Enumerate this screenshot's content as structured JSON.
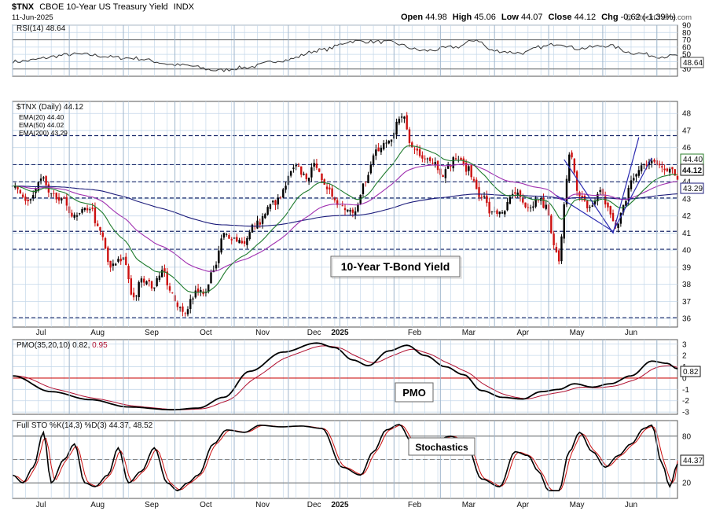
{
  "header": {
    "symbol": "$TNX",
    "name": "CBOE 10-Year US Treasury Yield",
    "exchange": "INDX",
    "date": "11-Jun-2025",
    "open_label": "Open",
    "open": "44.98",
    "high_label": "High",
    "high": "45.06",
    "low_label": "Low",
    "low": "44.07",
    "close_label": "Close",
    "close": "44.12",
    "chg_label": "Chg",
    "chg": "-0.62 (-1.39%)",
    "watermark": "@ StockCharts.com"
  },
  "colors": {
    "ema20": "#1e7b2c",
    "ema50": "#a030b0",
    "ema200": "#1a1a7a",
    "up_bar": "#000000",
    "down_bar": "#cc1010",
    "pmo_signal": "#b01030",
    "zero_line": "#cc1010",
    "trendline": "#2a2ab0",
    "grid": "#c5d8ea",
    "dashed": "#1b2a6b"
  },
  "panels": {
    "rsi": {
      "label": "RSI(14) 48.64",
      "value_badge": "48.64"
    },
    "price": {
      "label": "$TNX (Daily) 44.12",
      "legend": [
        {
          "label": "EMA(20) 44.40",
          "color_key": "ema20"
        },
        {
          "label": "EMA(50) 44.02",
          "color_key": "ema50"
        },
        {
          "label": "EMA(200) 43.29",
          "color_key": "ema200"
        }
      ],
      "badges": [
        "44.40",
        "44.12",
        "43.29"
      ]
    },
    "pmo": {
      "label_main": "PMO(35,20,10) 0.82, ",
      "label_signal": "0.95",
      "value_badge": "0.82"
    },
    "sto": {
      "label": "Full STO %K(14,3) %D(3) 44.37, 48.52",
      "value_badge": "44.37"
    }
  },
  "annotations": {
    "price": "10-Year T-Bond Yield",
    "pmo": "PMO",
    "sto": "Stochastics"
  },
  "x_axis_labels": [
    "Jul",
    "Aug",
    "Sep",
    "Oct",
    "Nov",
    "Dec",
    "2025",
    "Feb",
    "Mar",
    "Apr",
    "May",
    "Jun"
  ],
  "chart_data": [
    {
      "type": "line",
      "name": "RSI(14)",
      "ylim": [
        20,
        90
      ],
      "yticks": [
        90,
        80,
        70,
        60,
        50,
        40,
        30
      ],
      "reference_lines": [
        70,
        30
      ],
      "anchors": [
        [
          0,
          40
        ],
        [
          25,
          50
        ],
        [
          45,
          45
        ],
        [
          66,
          35
        ],
        [
          80,
          28
        ],
        [
          90,
          32
        ],
        [
          105,
          42
        ],
        [
          120,
          56
        ],
        [
          132,
          68
        ],
        [
          145,
          67
        ],
        [
          160,
          55
        ],
        [
          172,
          60
        ],
        [
          180,
          70
        ],
        [
          186,
          55
        ],
        [
          198,
          52
        ],
        [
          205,
          60
        ],
        [
          212,
          65
        ],
        [
          219,
          58
        ],
        [
          231,
          62
        ],
        [
          241,
          52
        ],
        [
          252,
          47
        ],
        [
          258,
          48
        ]
      ],
      "last": 48.64
    },
    {
      "type": "candlestick",
      "name": "$TNX (Daily)",
      "ylim": [
        35.5,
        48.7
      ],
      "yticks": [
        48,
        47,
        46,
        45,
        44,
        43,
        42,
        41,
        40,
        39,
        38,
        37,
        36
      ],
      "horizontal_levels": [
        46.7,
        45,
        44,
        43.05,
        41.1,
        40.05,
        36.05
      ],
      "anchors": [
        [
          0,
          43.6
        ],
        [
          6,
          42.9
        ],
        [
          12,
          44.2
        ],
        [
          14,
          43.2
        ],
        [
          20,
          42.8
        ],
        [
          24,
          41.9
        ],
        [
          30,
          42.5
        ],
        [
          34,
          41.0
        ],
        [
          38,
          39.0
        ],
        [
          43,
          39.5
        ],
        [
          47,
          37.2
        ],
        [
          50,
          38.2
        ],
        [
          55,
          37.9
        ],
        [
          58,
          39.0
        ],
        [
          62,
          37.3
        ],
        [
          66,
          36.3
        ],
        [
          71,
          37.5
        ],
        [
          75,
          37.6
        ],
        [
          78,
          38.8
        ],
        [
          82,
          40.9
        ],
        [
          90,
          40.5
        ],
        [
          94,
          41.5
        ],
        [
          102,
          42.8
        ],
        [
          110,
          44.8
        ],
        [
          114,
          44.3
        ],
        [
          118,
          45.0
        ],
        [
          122,
          43.4
        ],
        [
          129,
          42.5
        ],
        [
          132,
          42.3
        ],
        [
          137,
          44.0
        ],
        [
          141,
          45.8
        ],
        [
          146,
          46.2
        ],
        [
          151,
          48.0
        ],
        [
          155,
          46.0
        ],
        [
          160,
          45.5
        ],
        [
          163,
          45.2
        ],
        [
          167,
          44.5
        ],
        [
          172,
          45.4
        ],
        [
          176,
          44.8
        ],
        [
          182,
          43.2
        ],
        [
          186,
          42.1
        ],
        [
          190,
          42.3
        ],
        [
          195,
          43.3
        ],
        [
          200,
          42.3
        ],
        [
          204,
          43.0
        ],
        [
          207,
          42.5
        ],
        [
          210,
          40.3
        ],
        [
          212,
          39.2
        ],
        [
          214,
          42.8
        ],
        [
          216,
          45.8
        ],
        [
          220,
          43.0
        ],
        [
          224,
          42.5
        ],
        [
          228,
          43.4
        ],
        [
          231,
          42.5
        ],
        [
          234,
          41.3
        ],
        [
          237,
          42.6
        ],
        [
          241,
          44.3
        ],
        [
          245,
          45.0
        ],
        [
          248,
          45.4
        ],
        [
          251,
          44.8
        ],
        [
          254,
          44.7
        ],
        [
          256,
          44.9
        ],
        [
          258,
          44.12
        ]
      ],
      "last_close": 44.12,
      "ema20_last": 44.4,
      "ema50_last": 44.02,
      "ema200_last": 43.29
    },
    {
      "type": "line",
      "name": "PMO(35,20,10)",
      "ylim": [
        -3.2,
        3.4
      ],
      "yticks": [
        3,
        2,
        1,
        0,
        -1,
        -2,
        -3
      ],
      "anchors": [
        [
          0,
          0.2
        ],
        [
          15,
          -1.2
        ],
        [
          30,
          -1.9
        ],
        [
          45,
          -2.55
        ],
        [
          62,
          -2.8
        ],
        [
          72,
          -2.65
        ],
        [
          82,
          -1.7
        ],
        [
          92,
          0.6
        ],
        [
          105,
          2.3
        ],
        [
          118,
          3.1
        ],
        [
          125,
          2.7
        ],
        [
          132,
          1.6
        ],
        [
          138,
          1.1
        ],
        [
          146,
          2.4
        ],
        [
          153,
          2.9
        ],
        [
          160,
          2.0
        ],
        [
          168,
          1.0
        ],
        [
          175,
          0.3
        ],
        [
          182,
          -1.1
        ],
        [
          190,
          -1.7
        ],
        [
          198,
          -1.85
        ],
        [
          205,
          -1.2
        ],
        [
          212,
          -1.0
        ],
        [
          218,
          -0.5
        ],
        [
          225,
          -0.8
        ],
        [
          232,
          -0.5
        ],
        [
          240,
          0.2
        ],
        [
          248,
          1.5
        ],
        [
          254,
          1.3
        ],
        [
          258,
          0.82
        ]
      ],
      "signal_last": 0.95,
      "last": 0.82
    },
    {
      "type": "line",
      "name": "Full STO %K(14,3) %D(3)",
      "ylim": [
        0,
        100
      ],
      "yticks": [
        80,
        50,
        20
      ],
      "reference_lines": [
        80,
        20
      ],
      "anchors": [
        [
          0,
          30
        ],
        [
          4,
          20
        ],
        [
          8,
          40
        ],
        [
          12,
          85
        ],
        [
          15,
          20
        ],
        [
          20,
          50
        ],
        [
          24,
          70
        ],
        [
          28,
          20
        ],
        [
          32,
          15
        ],
        [
          37,
          30
        ],
        [
          41,
          65
        ],
        [
          45,
          20
        ],
        [
          50,
          35
        ],
        [
          55,
          65
        ],
        [
          60,
          20
        ],
        [
          64,
          10
        ],
        [
          68,
          20
        ],
        [
          72,
          30
        ],
        [
          78,
          70
        ],
        [
          83,
          88
        ],
        [
          90,
          85
        ],
        [
          96,
          94
        ],
        [
          104,
          92
        ],
        [
          112,
          93
        ],
        [
          120,
          90
        ],
        [
          128,
          40
        ],
        [
          135,
          30
        ],
        [
          140,
          60
        ],
        [
          145,
          88
        ],
        [
          150,
          95
        ],
        [
          155,
          72
        ],
        [
          162,
          70
        ],
        [
          170,
          80
        ],
        [
          176,
          70
        ],
        [
          182,
          25
        ],
        [
          189,
          15
        ],
        [
          195,
          60
        ],
        [
          200,
          55
        ],
        [
          204,
          35
        ],
        [
          208,
          10
        ],
        [
          212,
          10
        ],
        [
          216,
          60
        ],
        [
          220,
          85
        ],
        [
          225,
          60
        ],
        [
          230,
          40
        ],
        [
          235,
          55
        ],
        [
          240,
          70
        ],
        [
          245,
          90
        ],
        [
          248,
          94
        ],
        [
          252,
          45
        ],
        [
          255,
          15
        ],
        [
          258,
          44
        ]
      ],
      "k_last": 44.37,
      "d_last": 48.52
    }
  ]
}
